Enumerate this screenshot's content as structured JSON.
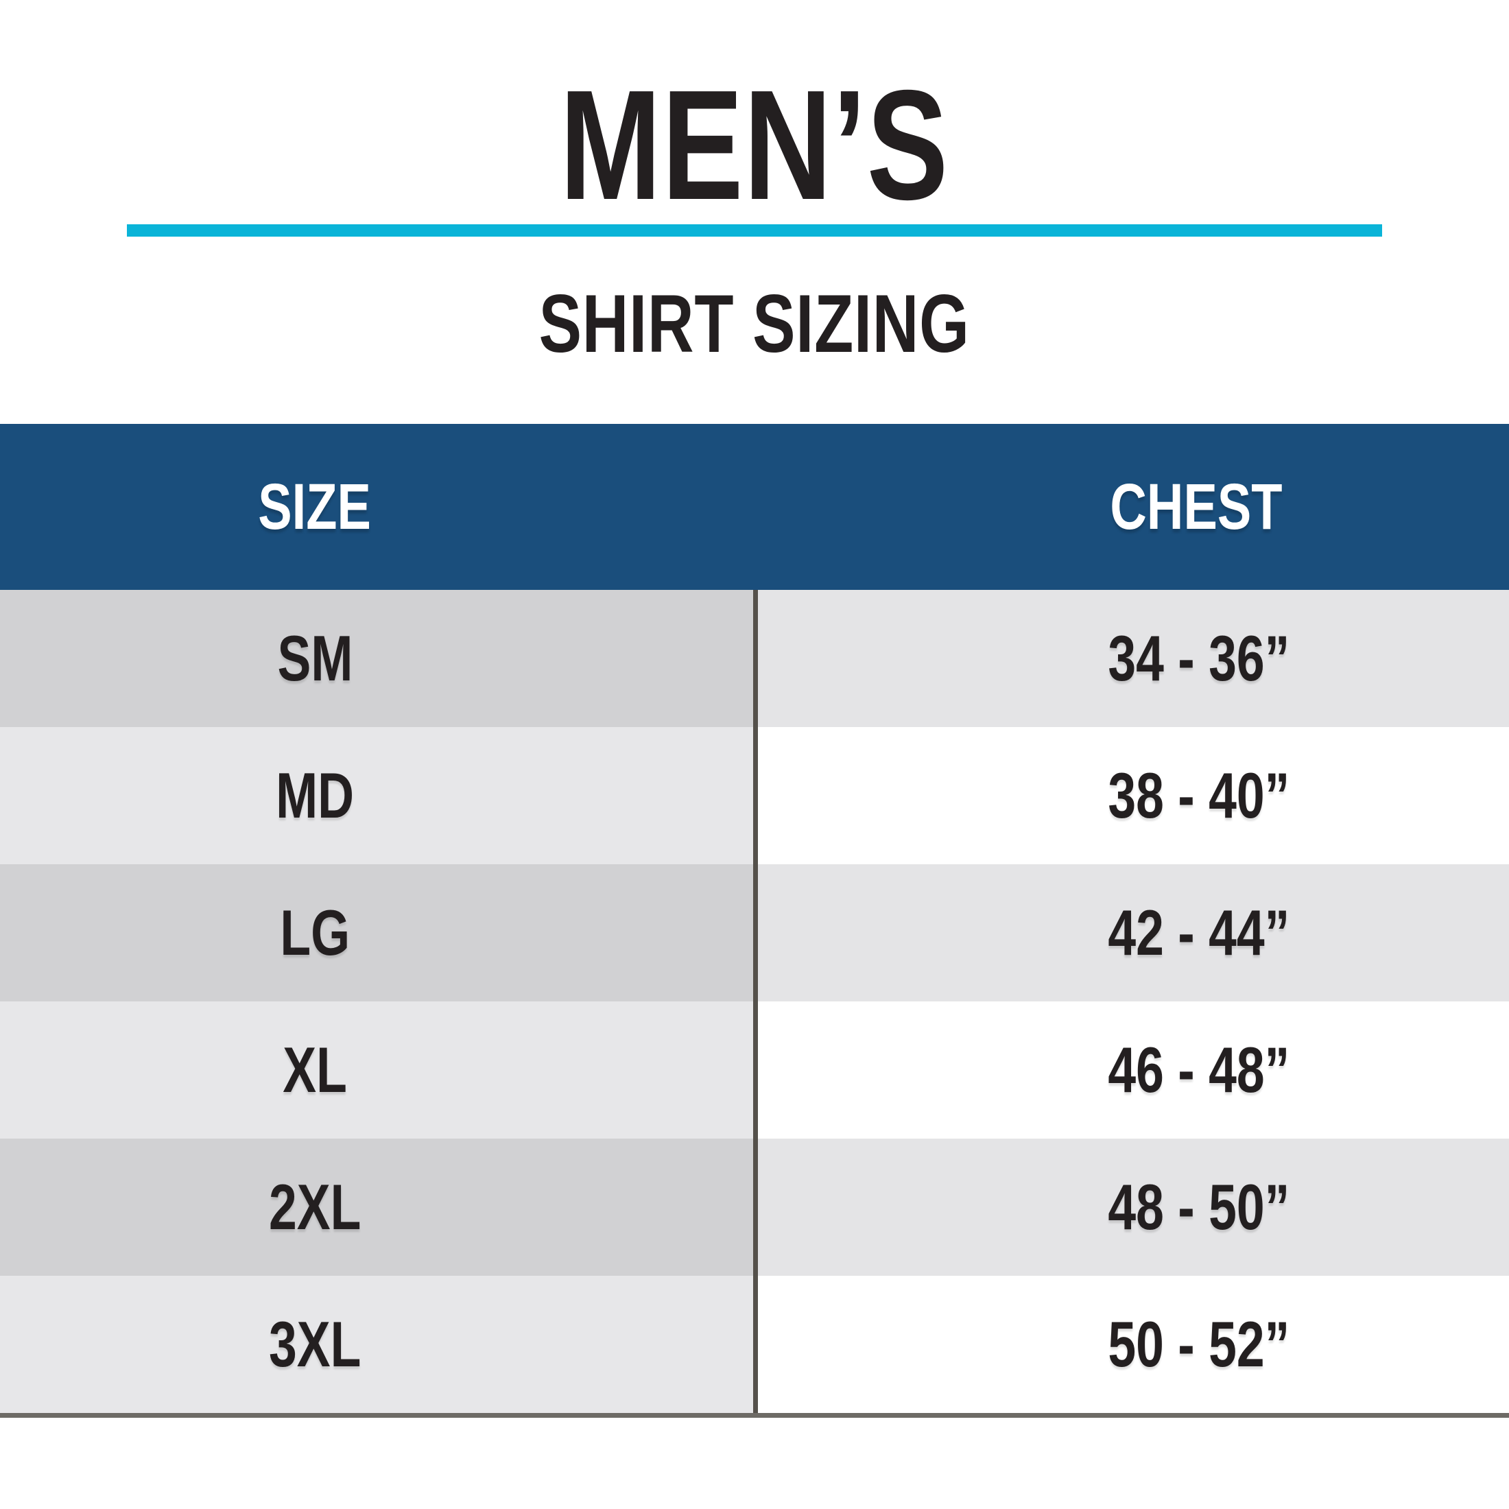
{
  "header": {
    "title": "MEN’S",
    "subtitle": "SHIRT SIZING"
  },
  "table": {
    "col_size": "SIZE",
    "col_chest": "CHEST",
    "rows": [
      {
        "size": "SM",
        "chest": "34 - 36”"
      },
      {
        "size": "MD",
        "chest": "38 - 40”"
      },
      {
        "size": "LG",
        "chest": "42 - 44”"
      },
      {
        "size": "XL",
        "chest": "46 - 48”"
      },
      {
        "size": "2XL",
        "chest": "48 - 50”"
      },
      {
        "size": "3XL",
        "chest": "50 - 52”"
      }
    ]
  },
  "colors": {
    "accent_teal": "#0AB4D8",
    "header_blue": "#1A4E7C",
    "text_dark": "#231F20",
    "row_odd_left": "#D1D1D3",
    "row_odd_right": "#E4E4E6",
    "row_even_left": "#E7E7E9",
    "row_even_right": "#FFFFFF",
    "divider": "#55514B",
    "bottom_border": "#6E6B66"
  },
  "chart_data": {
    "type": "table",
    "title": "MEN’S",
    "subtitle": "SHIRT SIZING",
    "columns": [
      "SIZE",
      "CHEST"
    ],
    "rows": [
      [
        "SM",
        "34 - 36”"
      ],
      [
        "MD",
        "38 - 40”"
      ],
      [
        "LG",
        "42 - 44”"
      ],
      [
        "XL",
        "46 - 48”"
      ],
      [
        "2XL",
        "48 - 50”"
      ],
      [
        "3XL",
        "50 - 52”"
      ]
    ],
    "units": "inches",
    "notes": "Men's shirt sizing chart: size label vs chest circumference range"
  }
}
